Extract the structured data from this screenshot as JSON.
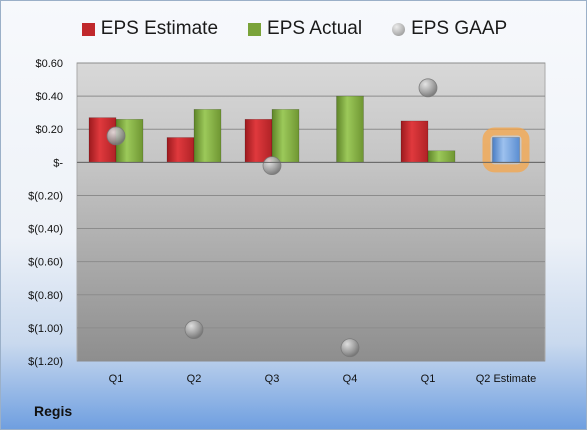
{
  "company": "Regis",
  "legend": [
    {
      "label": "EPS Estimate",
      "color": "#c0282c",
      "shape": "square"
    },
    {
      "label": "EPS Actual",
      "color": "#7aa33a",
      "shape": "square"
    },
    {
      "label": "EPS GAAP",
      "color": "#a8a8a8",
      "shape": "circle"
    }
  ],
  "chart_data": {
    "type": "bar",
    "categories": [
      "Q1",
      "Q2",
      "Q3",
      "Q4",
      "Q1",
      "Q2 Estimate"
    ],
    "series": [
      {
        "name": "EPS Estimate",
        "values": [
          0.27,
          0.15,
          0.26,
          null,
          0.25,
          0.15
        ]
      },
      {
        "name": "EPS Actual",
        "values": [
          0.26,
          0.32,
          0.32,
          0.4,
          0.07,
          null
        ]
      },
      {
        "name": "EPS GAAP",
        "type": "scatter",
        "values": [
          0.16,
          -1.01,
          -0.02,
          -1.12,
          0.45,
          null
        ]
      }
    ],
    "highlight": {
      "category": "Q2 Estimate",
      "series": "EPS Estimate",
      "color": "#6f9fdc"
    },
    "ylim": [
      -1.2,
      0.6
    ],
    "yticks": [
      0.6,
      0.4,
      0.2,
      0,
      -0.2,
      -0.4,
      -0.6,
      -0.8,
      -1.0,
      -1.2
    ],
    "ytick_labels": [
      "$0.60",
      "$0.40",
      "$0.20",
      "$-",
      "$(0.20)",
      "$(0.40)",
      "$(0.60)",
      "$(0.80)",
      "$(1.00)",
      "$(1.20)"
    ],
    "grid": true,
    "legend_position": "top"
  }
}
